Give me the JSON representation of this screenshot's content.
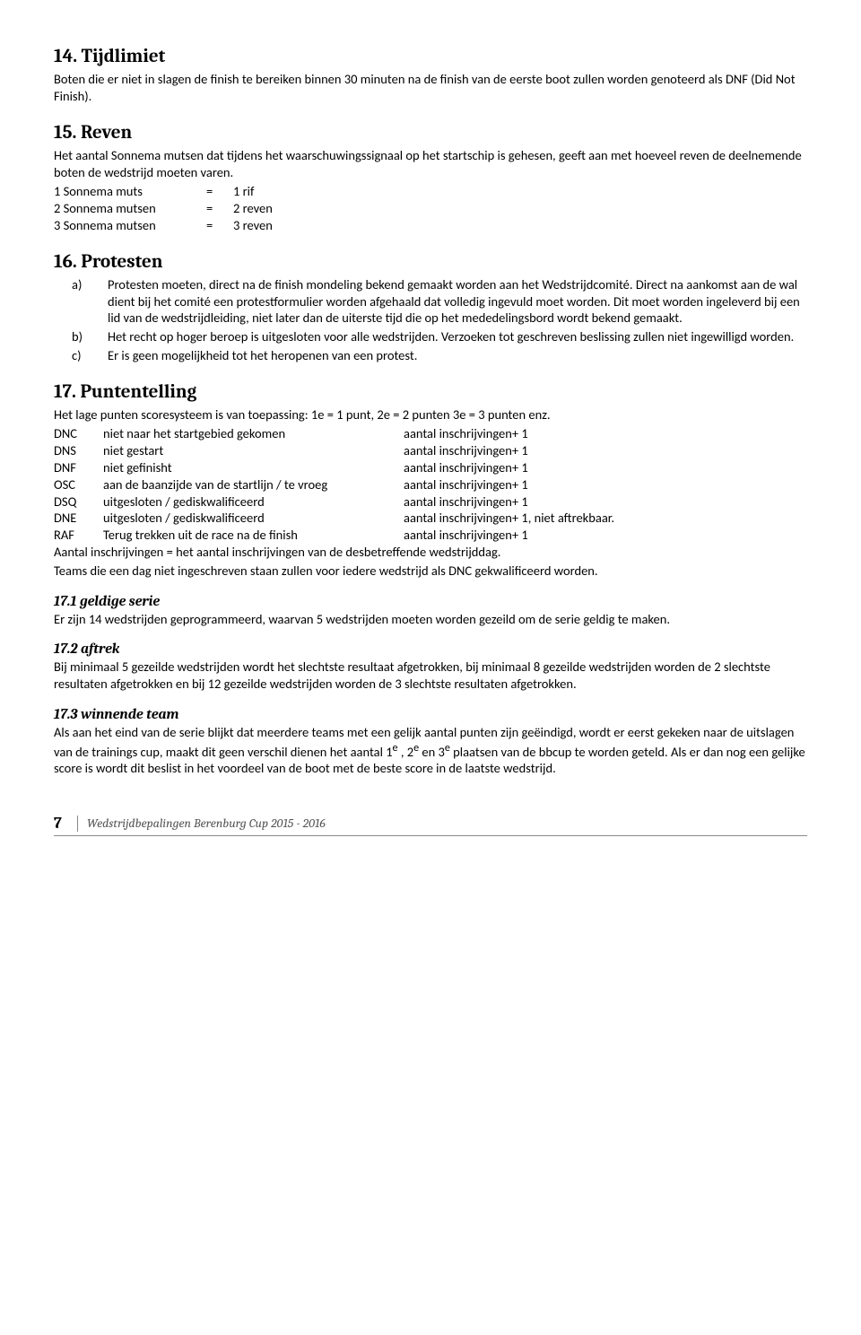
{
  "section14": {
    "heading": "14. Tijdlimiet",
    "body": "Boten die er niet in slagen de finish te bereiken binnen 30 minuten na de finish van de eerste boot zullen worden genoteerd als DNF (Did Not Finish)."
  },
  "section15": {
    "heading": "15. Reven",
    "body": "Het aantal Sonnema mutsen dat tijdens het waarschuwingssignaal op het startschip is gehesen, geeft aan met hoeveel reven de deelnemende boten de wedstrijd moeten varen.",
    "rows": [
      {
        "c1": "1 Sonnema muts",
        "c2": "=",
        "c3": "1 rif"
      },
      {
        "c1": "2 Sonnema mutsen",
        "c2": "=",
        "c3": "2 reven"
      },
      {
        "c1": "3 Sonnema mutsen",
        "c2": "=",
        "c3": "3 reven"
      }
    ]
  },
  "section16": {
    "heading": "16. Protesten",
    "items": [
      {
        "m": "a)",
        "t": "Protesten moeten, direct na de finish mondeling bekend gemaakt worden aan het Wedstrijdcomité. Direct na aankomst aan de wal dient bij het comité een protestformulier worden afgehaald dat volledig ingevuld moet worden. Dit moet worden ingeleverd bij een lid van de wedstrijdleiding, niet later dan de uiterste tijd die op het mededelingsbord wordt bekend gemaakt."
      },
      {
        "m": "b)",
        "t": "Het recht op hoger beroep is uitgesloten voor alle wedstrijden. Verzoeken tot geschreven beslissing zullen niet ingewilligd worden."
      },
      {
        "m": "c)",
        "t": "Er is geen mogelijkheid tot het heropenen van een protest."
      }
    ]
  },
  "section17": {
    "heading": "17. Puntentelling",
    "body": "Het lage punten scoresysteem is van toepassing: 1e = 1 punt, 2e = 2 punten 3e = 3 punten enz.",
    "rows": [
      {
        "c1": "DNC",
        "c2": "niet naar het startgebied gekomen",
        "c3": "aantal inschrijvingen+ 1"
      },
      {
        "c1": "DNS",
        "c2": "niet gestart",
        "c3": "aantal inschrijvingen+ 1"
      },
      {
        "c1": "DNF",
        "c2": "niet gefinisht",
        "c3": "aantal inschrijvingen+ 1"
      },
      {
        "c1": "OSC",
        "c2": "aan de baanzijde van de startlijn / te vroeg",
        "c3": "aantal inschrijvingen+ 1"
      },
      {
        "c1": "DSQ",
        "c2": "uitgesloten / gediskwalificeerd",
        "c3": "aantal inschrijvingen+ 1"
      },
      {
        "c1": "DNE",
        "c2": "uitgesloten / gediskwalificeerd",
        "c3": "aantal inschrijvingen+ 1, niet aftrekbaar."
      },
      {
        "c1": "RAF",
        "c2": "Terug trekken uit de race na de finish",
        "c3": "aantal inschrijvingen+ 1"
      }
    ],
    "after1": "Aantal inschrijvingen = het aantal inschrijvingen van de desbetreffende wedstrijddag.",
    "after2": "Teams die een dag niet ingeschreven staan zullen voor iedere wedstrijd als DNC gekwalificeerd worden.",
    "sub1": {
      "heading": "17.1 geldige serie",
      "body": "Er zijn 14 wedstrijden geprogrammeerd, waarvan 5 wedstrijden moeten worden gezeild om de serie geldig te maken."
    },
    "sub2": {
      "heading": "17.2 aftrek",
      "body": "Bij minimaal 5 gezeilde wedstrijden wordt het slechtste resultaat afgetrokken, bij minimaal 8 gezeilde wedstrijden worden de 2 slechtste resultaten afgetrokken en bij 12 gezeilde wedstrijden worden de 3 slechtste resultaten afgetrokken."
    },
    "sub3": {
      "heading": "17.3 winnende team",
      "body_html": "Als aan het eind van de serie blijkt dat meerdere teams met een gelijk aantal punten zijn geëindigd, wordt er eerst gekeken naar de uitslagen van de trainings cup, maakt dit geen verschil dienen het aantal 1<sup>e</sup> , 2<sup>e</sup> en 3<sup>e</sup> plaatsen van de bbcup te worden geteld. Als er dan nog een gelijke score is wordt dit beslist in het voordeel van de boot met de beste score in de laatste wedstrijd."
    }
  },
  "footer": {
    "page": "7",
    "title": "Wedstrijdbepalingen Berenburg Cup 2015 - 2016"
  }
}
